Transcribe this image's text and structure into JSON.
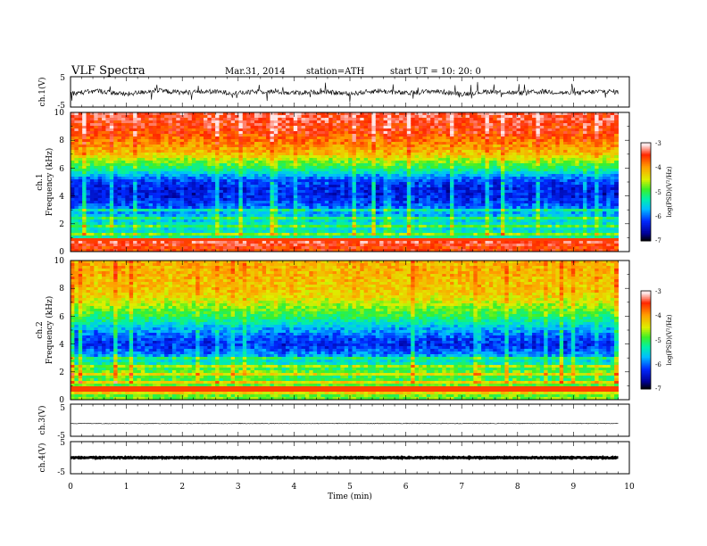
{
  "header": {
    "title": "VLF  Spectra",
    "date": "Mar.31, 2014",
    "station": "station=ATH",
    "start": "start  UT  =    10: 20: 0"
  },
  "colors": {
    "spectrogram_scale": [
      "#000000",
      "#0000aa",
      "#0030ff",
      "#00c0ff",
      "#00f0a0",
      "#30f030",
      "#d0f000",
      "#ffa000",
      "#ff3000",
      "#ffffff"
    ],
    "trace": "#000000",
    "frame": "#000000"
  },
  "chart_data": [
    {
      "type": "line",
      "panel": "ch1-waveform",
      "ylabel": "ch.1(V)",
      "ylim": [
        -5,
        5
      ],
      "yticks": [
        "5",
        "-5"
      ],
      "xlim": [
        0,
        10
      ],
      "x": [
        0,
        0.5,
        1,
        1.5,
        2,
        2.5,
        3,
        3.5,
        4,
        4.5,
        5,
        5.5,
        6,
        6.5,
        7,
        7.5,
        8,
        8.5,
        9,
        9.5,
        9.8
      ],
      "series": [
        {
          "values": [
            -0.5,
            0.3,
            -0.8,
            0.5,
            -0.2,
            0.1,
            -0.4,
            0.2,
            -0.3,
            0.0,
            -0.6,
            0.4,
            -0.5,
            0.3,
            -0.7,
            0.2,
            -0.4,
            0.1,
            -0.5,
            0.2,
            0.0
          ]
        }
      ]
    },
    {
      "type": "heatmap",
      "panel": "ch1-spectrogram",
      "ylabel_top": "ch.1",
      "ylabel": "Frequency  (kHz)",
      "ylim": [
        0,
        10
      ],
      "yticks": [
        "0",
        "2",
        "4",
        "6",
        "8",
        "10"
      ],
      "xlim": [
        0,
        10
      ],
      "colorbar": {
        "label": "log(PSD)(V²/Hz)",
        "range": [
          -7,
          -3
        ],
        "ticks": [
          "-3",
          "-4",
          "-5",
          "-6",
          "-7"
        ]
      },
      "freq_profile_log_psd": [
        {
          "f": 0.3,
          "v": -3.6
        },
        {
          "f": 0.7,
          "v": -3.4
        },
        {
          "f": 1.0,
          "v": -5.2
        },
        {
          "f": 1.5,
          "v": -5.6
        },
        {
          "f": 2.0,
          "v": -5.6
        },
        {
          "f": 2.5,
          "v": -5.8
        },
        {
          "f": 3.0,
          "v": -6.0
        },
        {
          "f": 3.5,
          "v": -6.3
        },
        {
          "f": 4.0,
          "v": -6.5
        },
        {
          "f": 4.5,
          "v": -6.5
        },
        {
          "f": 5.0,
          "v": -6.3
        },
        {
          "f": 5.5,
          "v": -5.8
        },
        {
          "f": 6.0,
          "v": -5.2
        },
        {
          "f": 6.5,
          "v": -4.8
        },
        {
          "f": 7.0,
          "v": -4.3
        },
        {
          "f": 7.5,
          "v": -4.1
        },
        {
          "f": 8.0,
          "v": -3.9
        },
        {
          "f": 8.5,
          "v": -3.7
        },
        {
          "f": 9.0,
          "v": -3.6
        },
        {
          "f": 9.5,
          "v": -3.5
        },
        {
          "f": 10.0,
          "v": -3.5
        }
      ]
    },
    {
      "type": "heatmap",
      "panel": "ch2-spectrogram",
      "ylabel_top": "ch.2",
      "ylabel": "Frequency  (kHz)",
      "ylim": [
        0,
        10
      ],
      "yticks": [
        "0",
        "2",
        "4",
        "6",
        "8",
        "10"
      ],
      "xlim": [
        0,
        10
      ],
      "colorbar": {
        "label": "log(PSD)(V²/Hz)",
        "range": [
          -7,
          -3
        ],
        "ticks": [
          "-3",
          "-4",
          "-5",
          "-6",
          "-7"
        ]
      },
      "freq_profile_log_psd": [
        {
          "f": 0.3,
          "v": -4.8
        },
        {
          "f": 0.7,
          "v": -3.8
        },
        {
          "f": 1.0,
          "v": -4.8
        },
        {
          "f": 1.5,
          "v": -5.2
        },
        {
          "f": 2.0,
          "v": -5.0
        },
        {
          "f": 2.5,
          "v": -5.4
        },
        {
          "f": 3.0,
          "v": -5.8
        },
        {
          "f": 3.5,
          "v": -6.2
        },
        {
          "f": 4.0,
          "v": -6.4
        },
        {
          "f": 4.5,
          "v": -6.2
        },
        {
          "f": 5.0,
          "v": -5.9
        },
        {
          "f": 5.5,
          "v": -5.5
        },
        {
          "f": 6.0,
          "v": -5.1
        },
        {
          "f": 6.5,
          "v": -4.9
        },
        {
          "f": 7.0,
          "v": -4.6
        },
        {
          "f": 7.5,
          "v": -4.4
        },
        {
          "f": 8.0,
          "v": -4.3
        },
        {
          "f": 8.5,
          "v": -4.3
        },
        {
          "f": 9.0,
          "v": -4.2
        },
        {
          "f": 9.5,
          "v": -4.2
        },
        {
          "f": 10.0,
          "v": -4.2
        }
      ]
    },
    {
      "type": "line",
      "panel": "ch3-waveform",
      "ylabel": "ch.3(V)",
      "ylim": [
        -5,
        5
      ],
      "yticks": [
        "5",
        "-5"
      ],
      "xlim": [
        0,
        10
      ],
      "x": [
        0,
        9.8
      ],
      "series": [
        {
          "values": [
            -1.0,
            -1.0
          ]
        }
      ]
    },
    {
      "type": "line",
      "panel": "ch4-waveform",
      "ylabel": "ch.4(V)",
      "ylim": [
        -5,
        5
      ],
      "yticks": [
        "5",
        "-5"
      ],
      "xlim": [
        0,
        10
      ],
      "x": [
        0,
        9.8
      ],
      "series": [
        {
          "values": [
            0.0,
            0.0
          ]
        }
      ]
    }
  ],
  "x_axis": {
    "label": "Time  (min)",
    "ticks": [
      "0",
      "1",
      "2",
      "3",
      "4",
      "5",
      "6",
      "7",
      "8",
      "9",
      "10"
    ]
  }
}
